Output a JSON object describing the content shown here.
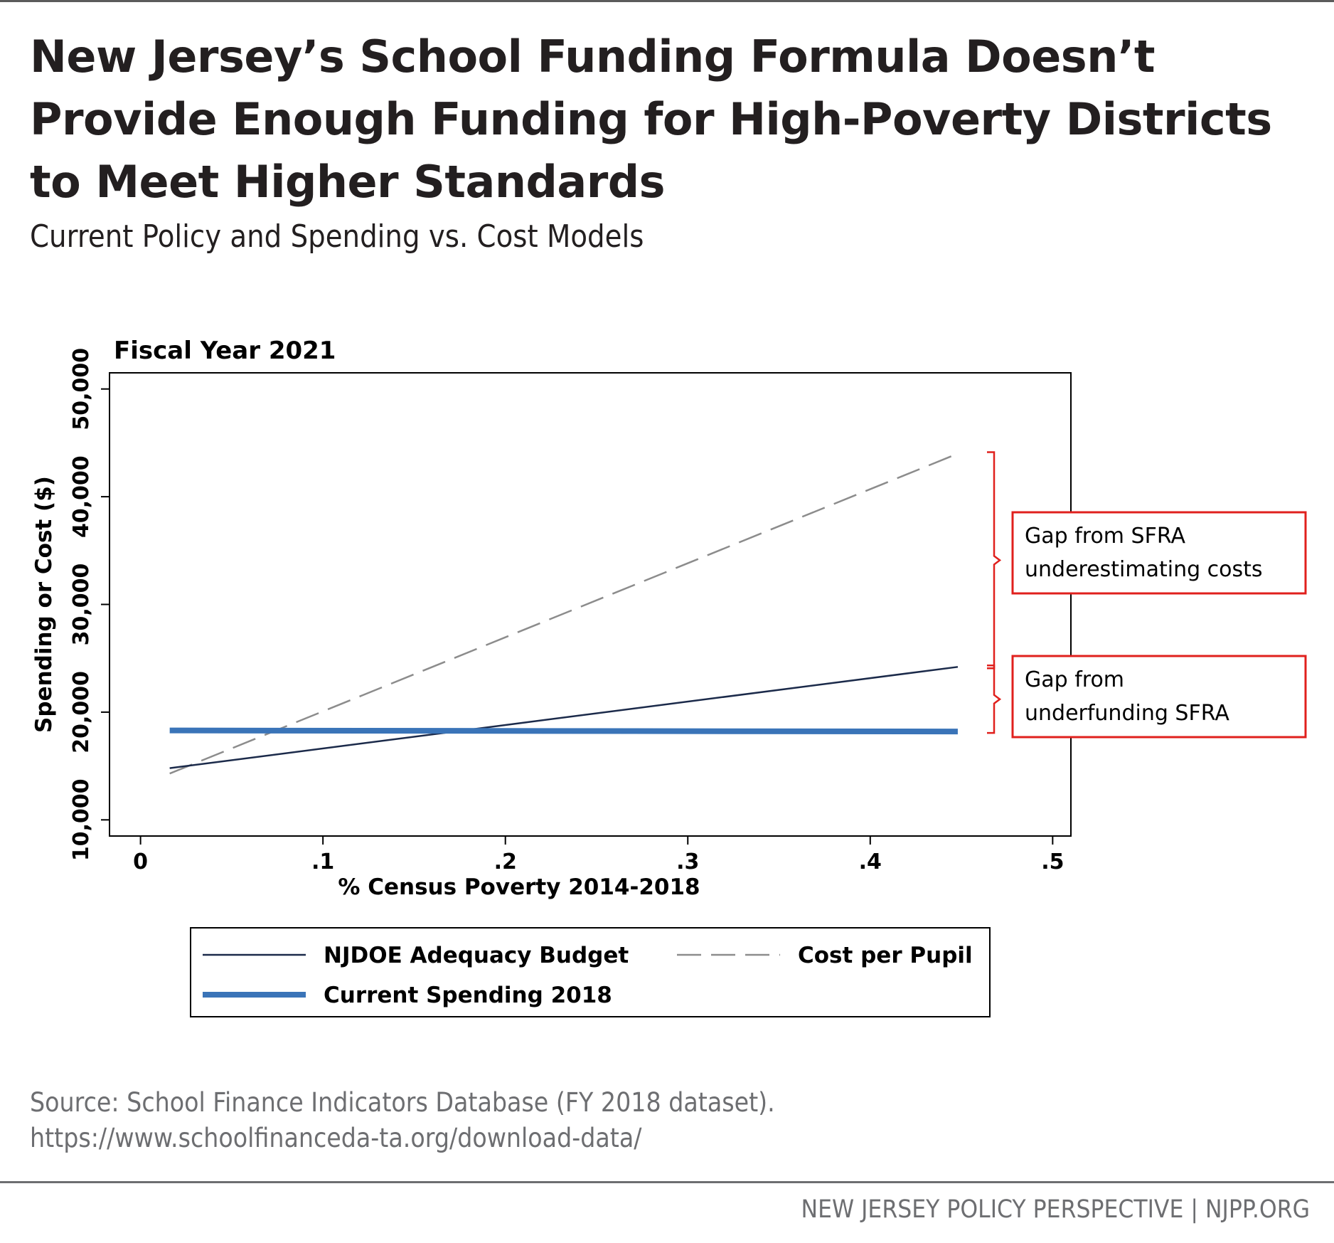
{
  "header": {
    "title": "New Jersey’s School Funding Formula Doesn’t Provide Enough Funding for High-Poverty Districts to Meet Higher Standards",
    "subtitle": "Current Policy and Spending vs. Cost Models"
  },
  "chart_data": {
    "type": "line",
    "title": "Fiscal Year 2021",
    "xlabel": "% Census Poverty 2014-2018",
    "ylabel": "Spending or Cost ($)",
    "xlim": [
      -0.017,
      0.51
    ],
    "ylim": [
      8500,
      51500
    ],
    "xticks": [
      0,
      0.1,
      0.2,
      0.3,
      0.4,
      0.5
    ],
    "xtick_labels": [
      "0",
      ".1",
      ".2",
      ".3",
      ".4",
      ".5"
    ],
    "yticks": [
      10000,
      20000,
      30000,
      40000,
      50000
    ],
    "ytick_labels": [
      "10,000",
      "20,000",
      "30,000",
      "40,000",
      "50,000"
    ],
    "grid": false,
    "legend_position": "bottom",
    "series": [
      {
        "name": "NJDOE Adequacy Budget",
        "style": "solid-thin",
        "color": "#1b2a4a",
        "x": [
          0.016,
          0.448
        ],
        "y": [
          14800,
          24200
        ]
      },
      {
        "name": "Cost per Pupil",
        "style": "dashed",
        "color": "#8c8c8c",
        "x": [
          0.016,
          0.448
        ],
        "y": [
          14300,
          44000
        ]
      },
      {
        "name": "Current Spending 2018",
        "style": "solid-thick",
        "color": "#3a74b8",
        "x": [
          0.016,
          0.448
        ],
        "y": [
          18300,
          18200
        ]
      }
    ],
    "annotations": [
      {
        "text_lines": [
          "Gap from SFRA",
          "underestimating costs"
        ],
        "color": "#e0201d",
        "y_range": [
          24200,
          44000
        ]
      },
      {
        "text_lines": [
          "Gap from",
          "underfunding SFRA"
        ],
        "color": "#e0201d",
        "y_range": [
          18200,
          24200
        ]
      }
    ]
  },
  "source": "Source: School Finance Indicators Database (FY 2018 dataset). https://www.schoolfinanceda-ta.org/download-data/",
  "footer": "NEW JERSEY POLICY PERSPECTIVE | NJPP.ORG"
}
